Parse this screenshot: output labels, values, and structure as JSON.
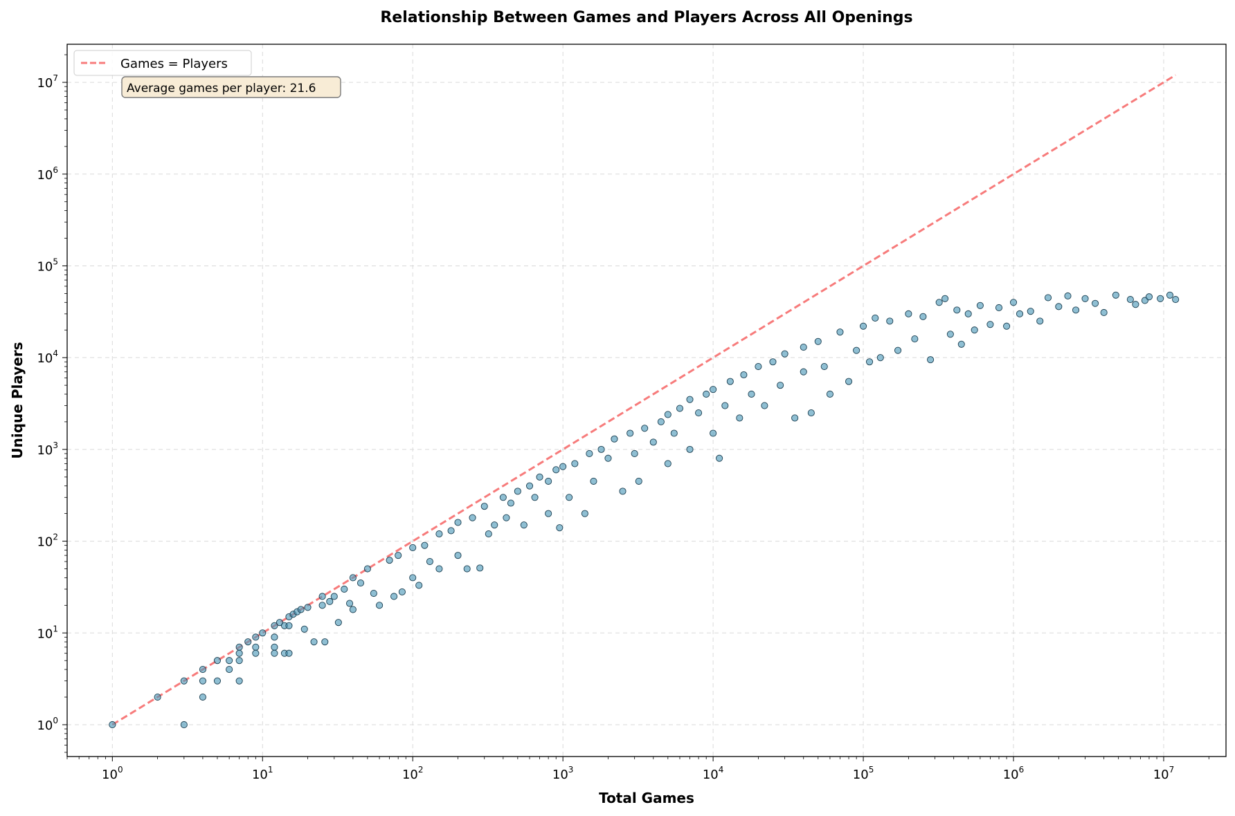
{
  "chart_data": {
    "type": "scatter",
    "title": "Relationship Between Games and Players Across All Openings",
    "xlabel": "Total Games",
    "ylabel": "Unique Players",
    "xscale": "log",
    "yscale": "log",
    "xlim": [
      0.5,
      26000000
    ],
    "ylim": [
      0.45,
      26000000
    ],
    "grid": true,
    "legend_position": "top-left",
    "x_tick_labels": [
      {
        "value": 1,
        "base": "10",
        "exp": "0"
      },
      {
        "value": 10,
        "base": "10",
        "exp": "1"
      },
      {
        "value": 100,
        "base": "10",
        "exp": "2"
      },
      {
        "value": 1000,
        "base": "10",
        "exp": "3"
      },
      {
        "value": 10000,
        "base": "10",
        "exp": "4"
      },
      {
        "value": 100000,
        "base": "10",
        "exp": "5"
      },
      {
        "value": 1000000,
        "base": "10",
        "exp": "6"
      },
      {
        "value": 10000000,
        "base": "10",
        "exp": "7"
      }
    ],
    "y_tick_labels": [
      {
        "value": 1,
        "base": "10",
        "exp": "0"
      },
      {
        "value": 10,
        "base": "10",
        "exp": "1"
      },
      {
        "value": 100,
        "base": "10",
        "exp": "2"
      },
      {
        "value": 1000,
        "base": "10",
        "exp": "3"
      },
      {
        "value": 10000,
        "base": "10",
        "exp": "4"
      },
      {
        "value": 100000,
        "base": "10",
        "exp": "5"
      },
      {
        "value": 1000000,
        "base": "10",
        "exp": "6"
      },
      {
        "value": 10000000,
        "base": "10",
        "exp": "7"
      }
    ],
    "reference_line": {
      "name": "Games = Players",
      "x": [
        1,
        12000000
      ],
      "y": [
        1,
        12000000
      ],
      "color": "#f77b7b",
      "style": "dashed"
    },
    "annotation": "Average games per player: 21.6",
    "series": {
      "color": "#4a97b8",
      "edge_color": "#1a3d4f",
      "points": [
        [
          1,
          1
        ],
        [
          2,
          2
        ],
        [
          3,
          3
        ],
        [
          3,
          1
        ],
        [
          4,
          4
        ],
        [
          4,
          3
        ],
        [
          4,
          2
        ],
        [
          5,
          5
        ],
        [
          5,
          3
        ],
        [
          6,
          5
        ],
        [
          6,
          4
        ],
        [
          7,
          7
        ],
        [
          7,
          6
        ],
        [
          7,
          5
        ],
        [
          7,
          3
        ],
        [
          8,
          8
        ],
        [
          9,
          9
        ],
        [
          9,
          7
        ],
        [
          9,
          6
        ],
        [
          10,
          10
        ],
        [
          12,
          12
        ],
        [
          12,
          9
        ],
        [
          12,
          7
        ],
        [
          12,
          6
        ],
        [
          13,
          13
        ],
        [
          14,
          12
        ],
        [
          14,
          6
        ],
        [
          15,
          15
        ],
        [
          15,
          12
        ],
        [
          15,
          6
        ],
        [
          16,
          16
        ],
        [
          17,
          17
        ],
        [
          18,
          18
        ],
        [
          19,
          11
        ],
        [
          20,
          19
        ],
        [
          22,
          8
        ],
        [
          25,
          25
        ],
        [
          25,
          20
        ],
        [
          26,
          8
        ],
        [
          28,
          22
        ],
        [
          30,
          25
        ],
        [
          32,
          13
        ],
        [
          35,
          30
        ],
        [
          38,
          21
        ],
        [
          40,
          40
        ],
        [
          40,
          18
        ],
        [
          45,
          35
        ],
        [
          50,
          50
        ],
        [
          55,
          27
        ],
        [
          60,
          20
        ],
        [
          70,
          62
        ],
        [
          75,
          25
        ],
        [
          80,
          70
        ],
        [
          85,
          28
        ],
        [
          100,
          85
        ],
        [
          100,
          40
        ],
        [
          110,
          33
        ],
        [
          120,
          90
        ],
        [
          130,
          60
        ],
        [
          150,
          120
        ],
        [
          150,
          50
        ],
        [
          180,
          130
        ],
        [
          200,
          160
        ],
        [
          200,
          70
        ],
        [
          230,
          50
        ],
        [
          250,
          180
        ],
        [
          280,
          51
        ],
        [
          300,
          240
        ],
        [
          320,
          120
        ],
        [
          350,
          150
        ],
        [
          400,
          300
        ],
        [
          420,
          180
        ],
        [
          450,
          260
        ],
        [
          500,
          350
        ],
        [
          550,
          150
        ],
        [
          600,
          400
        ],
        [
          650,
          300
        ],
        [
          700,
          500
        ],
        [
          800,
          200
        ],
        [
          800,
          450
        ],
        [
          900,
          600
        ],
        [
          950,
          140
        ],
        [
          1000,
          650
        ],
        [
          1100,
          300
        ],
        [
          1200,
          700
        ],
        [
          1400,
          200
        ],
        [
          1500,
          900
        ],
        [
          1600,
          450
        ],
        [
          1800,
          1000
        ],
        [
          2000,
          800
        ],
        [
          2200,
          1300
        ],
        [
          2500,
          350
        ],
        [
          2800,
          1500
        ],
        [
          3000,
          900
        ],
        [
          3200,
          450
        ],
        [
          3500,
          1700
        ],
        [
          4000,
          1200
        ],
        [
          4500,
          2000
        ],
        [
          5000,
          700
        ],
        [
          5000,
          2400
        ],
        [
          5500,
          1500
        ],
        [
          6000,
          2800
        ],
        [
          7000,
          1000
        ],
        [
          7000,
          3500
        ],
        [
          8000,
          2500
        ],
        [
          9000,
          4000
        ],
        [
          10000,
          1500
        ],
        [
          10000,
          4500
        ],
        [
          11000,
          800
        ],
        [
          12000,
          3000
        ],
        [
          13000,
          5500
        ],
        [
          15000,
          2200
        ],
        [
          16000,
          6500
        ],
        [
          18000,
          4000
        ],
        [
          20000,
          8000
        ],
        [
          22000,
          3000
        ],
        [
          25000,
          9000
        ],
        [
          28000,
          5000
        ],
        [
          30000,
          11000
        ],
        [
          35000,
          2200
        ],
        [
          40000,
          7000
        ],
        [
          40000,
          13000
        ],
        [
          45000,
          2500
        ],
        [
          50000,
          15000
        ],
        [
          55000,
          8000
        ],
        [
          60000,
          4000
        ],
        [
          70000,
          19000
        ],
        [
          80000,
          5500
        ],
        [
          90000,
          12000
        ],
        [
          100000,
          22000
        ],
        [
          110000,
          9000
        ],
        [
          120000,
          27000
        ],
        [
          130000,
          10000
        ],
        [
          150000,
          25000
        ],
        [
          170000,
          12000
        ],
        [
          200000,
          30000
        ],
        [
          220000,
          16000
        ],
        [
          250000,
          28000
        ],
        [
          280000,
          9500
        ],
        [
          320000,
          40000
        ],
        [
          350000,
          44000
        ],
        [
          380000,
          18000
        ],
        [
          420000,
          33000
        ],
        [
          450000,
          14000
        ],
        [
          500000,
          30000
        ],
        [
          550000,
          20000
        ],
        [
          600000,
          37000
        ],
        [
          700000,
          23000
        ],
        [
          800000,
          35000
        ],
        [
          900000,
          22000
        ],
        [
          1000000,
          40000
        ],
        [
          1100000,
          30000
        ],
        [
          1300000,
          32000
        ],
        [
          1500000,
          25000
        ],
        [
          1700000,
          45000
        ],
        [
          2000000,
          36000
        ],
        [
          2300000,
          47000
        ],
        [
          2600000,
          33000
        ],
        [
          3000000,
          44000
        ],
        [
          3500000,
          39000
        ],
        [
          4000000,
          31000
        ],
        [
          4800000,
          48000
        ],
        [
          6000000,
          43000
        ],
        [
          6500000,
          38000
        ],
        [
          7500000,
          42000
        ],
        [
          8000000,
          46000
        ],
        [
          9500000,
          44000
        ],
        [
          11000000,
          48000
        ],
        [
          12000000,
          43000
        ]
      ]
    }
  }
}
